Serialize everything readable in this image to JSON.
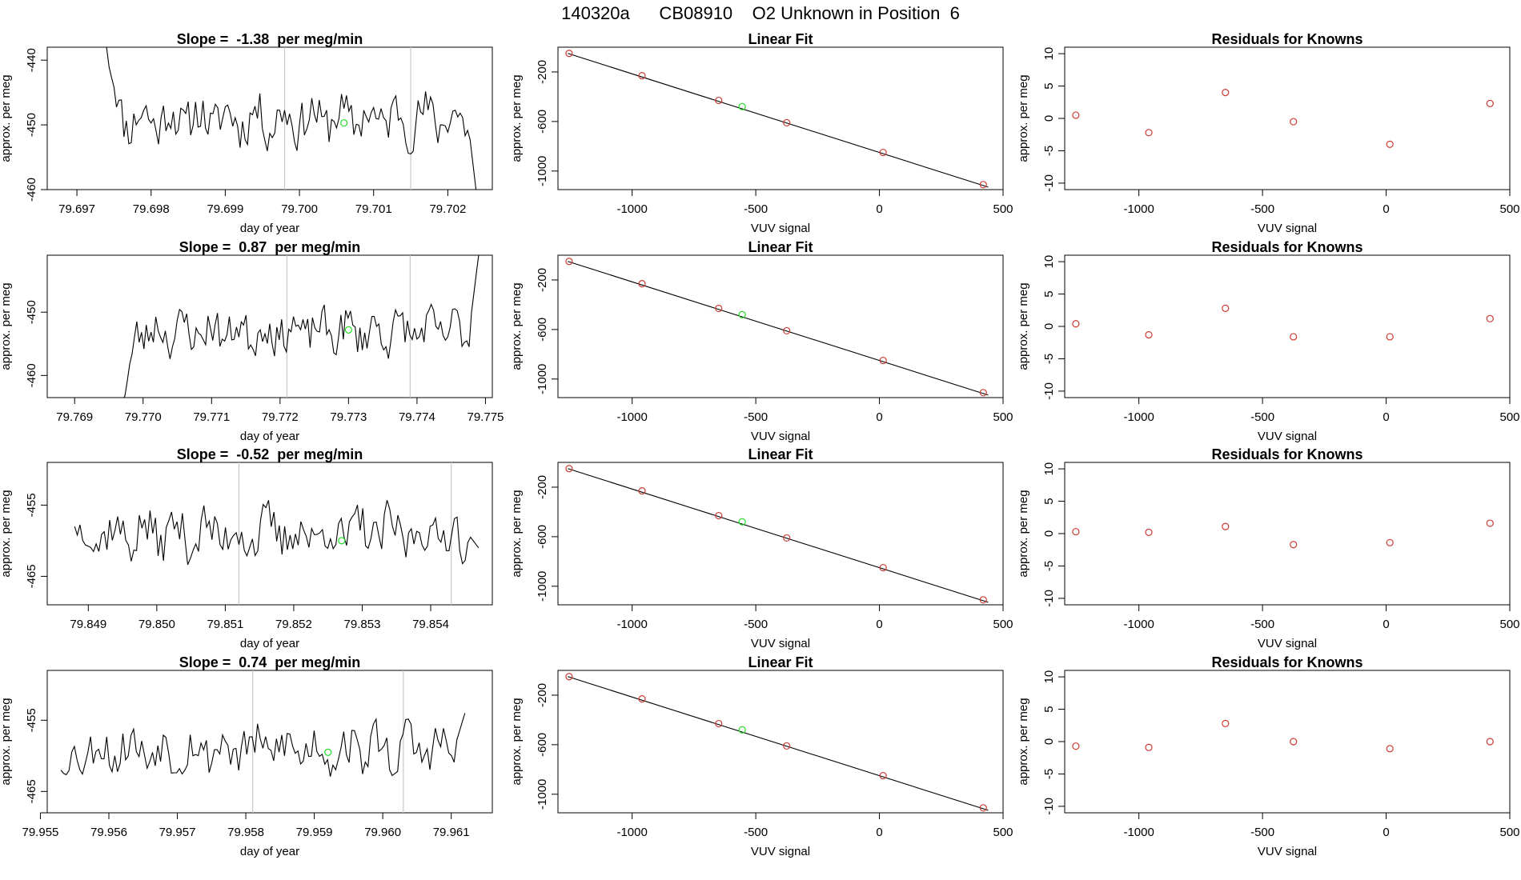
{
  "page_title": "140320a      CB08910    O2 Unknown in Position  6",
  "colors": {
    "line": "#000000",
    "known": "#cd3a33",
    "unknown": "#22dd22",
    "vline": "#c8c8c8",
    "axis": "#000000"
  },
  "chart_data": [
    {
      "type": "line",
      "title": "Slope =  -1.38  per meg/min",
      "xlabel": "day of year",
      "ylabel": "approx. per meg",
      "xlim": [
        79.6966,
        79.7026
      ],
      "ylim": [
        -460,
        -438
      ],
      "xticks": [
        "79.697",
        "79.698",
        "79.699",
        "79.700",
        "79.701",
        "79.702"
      ],
      "xtick_values": [
        79.697,
        79.698,
        79.699,
        79.7,
        79.701,
        79.702
      ],
      "yticks": [
        "-440",
        "-450",
        "-460"
      ],
      "ytick_values": [
        -440,
        -450,
        -460
      ],
      "vlines": [
        79.6998,
        79.7015
      ],
      "unknown_point": {
        "x": 79.7006,
        "y": -449.7
      },
      "trace": {
        "x_start": 79.6974,
        "x_end": 79.7024,
        "seed": 11,
        "mean": -449,
        "amp": 4.5,
        "start_y": -438,
        "end_y": -462
      }
    },
    {
      "type": "scatter",
      "title": "Linear Fit",
      "xlabel": "VUV signal",
      "ylabel": "approx. per meg",
      "xlim": [
        -1300,
        500
      ],
      "ylim": [
        -1150,
        0
      ],
      "xticks": [
        "-1000",
        "-500",
        "0",
        "500"
      ],
      "xtick_values": [
        -1000,
        -500,
        0,
        500
      ],
      "yticks": [
        "-200",
        "-600",
        "-1000"
      ],
      "ytick_values": [
        -200,
        -600,
        -1000
      ],
      "fit_line": {
        "x": [
          -1260,
          440
        ],
        "y": [
          -50,
          -1130
        ]
      },
      "known_points": [
        {
          "x": -1255,
          "y": -50
        },
        {
          "x": -960,
          "y": -230
        },
        {
          "x": -650,
          "y": -430
        },
        {
          "x": -375,
          "y": -610
        },
        {
          "x": 15,
          "y": -850
        },
        {
          "x": 420,
          "y": -1110
        }
      ],
      "unknown_point": {
        "x": -555,
        "y": -480
      }
    },
    {
      "type": "scatter",
      "title": "Residuals for Knowns",
      "xlabel": "VUV signal",
      "ylabel": "approx. per meg",
      "xlim": [
        -1300,
        500
      ],
      "ylim": [
        -11,
        11
      ],
      "xticks": [
        "-1000",
        "-500",
        "0",
        "500"
      ],
      "xtick_values": [
        -1000,
        -500,
        0,
        500
      ],
      "yticks": [
        "10",
        "5",
        "0",
        "-5",
        "-10"
      ],
      "ytick_values": [
        10,
        5,
        0,
        -5,
        -10
      ],
      "known_points": [
        {
          "x": -1255,
          "y": 0.5
        },
        {
          "x": -960,
          "y": -2.2
        },
        {
          "x": -650,
          "y": 4.0
        },
        {
          "x": -375,
          "y": -0.5
        },
        {
          "x": 15,
          "y": -4.0
        },
        {
          "x": 420,
          "y": 2.3
        }
      ]
    },
    {
      "type": "line",
      "title": "Slope =  0.87  per meg/min",
      "xlabel": "day of year",
      "ylabel": "approx. per meg",
      "xlim": [
        79.7686,
        79.7751
      ],
      "ylim": [
        -463.5,
        -441
      ],
      "xticks": [
        "79.769",
        "79.770",
        "79.771",
        "79.772",
        "79.773",
        "79.774",
        "79.775"
      ],
      "xtick_values": [
        79.769,
        79.77,
        79.771,
        79.772,
        79.773,
        79.774,
        79.775
      ],
      "yticks": [
        "-450",
        "-460"
      ],
      "ytick_values": [
        -450,
        -460
      ],
      "vlines": [
        79.7721,
        79.7739
      ],
      "unknown_point": {
        "x": 79.773,
        "y": -452.8
      },
      "trace": {
        "x_start": 79.7697,
        "x_end": 79.7749,
        "seed": 23,
        "mean": -453,
        "amp": 4.0,
        "start_y": -464,
        "end_y": -441
      }
    },
    {
      "type": "scatter",
      "title": "Linear Fit",
      "xlabel": "VUV signal",
      "ylabel": "approx. per meg",
      "xlim": [
        -1300,
        500
      ],
      "ylim": [
        -1150,
        0
      ],
      "xticks": [
        "-1000",
        "-500",
        "0",
        "500"
      ],
      "xtick_values": [
        -1000,
        -500,
        0,
        500
      ],
      "yticks": [
        "-200",
        "-600",
        "-1000"
      ],
      "ytick_values": [
        -200,
        -600,
        -1000
      ],
      "fit_line": {
        "x": [
          -1260,
          440
        ],
        "y": [
          -50,
          -1130
        ]
      },
      "known_points": [
        {
          "x": -1255,
          "y": -50
        },
        {
          "x": -960,
          "y": -230
        },
        {
          "x": -650,
          "y": -430
        },
        {
          "x": -375,
          "y": -610
        },
        {
          "x": 15,
          "y": -850
        },
        {
          "x": 420,
          "y": -1110
        }
      ],
      "unknown_point": {
        "x": -555,
        "y": -480
      }
    },
    {
      "type": "scatter",
      "title": "Residuals for Knowns",
      "xlabel": "VUV signal",
      "ylabel": "approx. per meg",
      "xlim": [
        -1300,
        500
      ],
      "ylim": [
        -11,
        11
      ],
      "xticks": [
        "-1000",
        "-500",
        "0",
        "500"
      ],
      "xtick_values": [
        -1000,
        -500,
        0,
        500
      ],
      "yticks": [
        "10",
        "5",
        "0",
        "-5",
        "-10"
      ],
      "ytick_values": [
        10,
        5,
        0,
        -5,
        -10
      ],
      "known_points": [
        {
          "x": -1255,
          "y": 0.4
        },
        {
          "x": -960,
          "y": -1.3
        },
        {
          "x": -650,
          "y": 2.8
        },
        {
          "x": -375,
          "y": -1.6
        },
        {
          "x": 15,
          "y": -1.6
        },
        {
          "x": 420,
          "y": 1.2
        }
      ]
    },
    {
      "type": "line",
      "title": "Slope =  -0.52  per meg/min",
      "xlabel": "day of year",
      "ylabel": "approx. per meg",
      "xlim": [
        79.8484,
        79.8549
      ],
      "ylim": [
        -469,
        -449
      ],
      "xticks": [
        "79.849",
        "79.850",
        "79.851",
        "79.852",
        "79.853",
        "79.854"
      ],
      "xtick_values": [
        79.849,
        79.85,
        79.851,
        79.852,
        79.853,
        79.854
      ],
      "yticks": [
        "-455",
        "-465"
      ],
      "ytick_values": [
        -455,
        -465
      ],
      "vlines": [
        79.8512,
        79.8543
      ],
      "unknown_point": {
        "x": 79.8527,
        "y": -460.0
      },
      "trace": {
        "x_start": 79.8488,
        "x_end": 79.8547,
        "seed": 37,
        "mean": -459,
        "amp": 4.2,
        "start_y": -458,
        "end_y": -461
      }
    },
    {
      "type": "scatter",
      "title": "Linear Fit",
      "xlabel": "VUV signal",
      "ylabel": "approx. per meg",
      "xlim": [
        -1300,
        500
      ],
      "ylim": [
        -1150,
        0
      ],
      "xticks": [
        "-1000",
        "-500",
        "0",
        "500"
      ],
      "xtick_values": [
        -1000,
        -500,
        0,
        500
      ],
      "yticks": [
        "-200",
        "-600",
        "-1000"
      ],
      "ytick_values": [
        -200,
        -600,
        -1000
      ],
      "fit_line": {
        "x": [
          -1260,
          440
        ],
        "y": [
          -50,
          -1130
        ]
      },
      "known_points": [
        {
          "x": -1255,
          "y": -50
        },
        {
          "x": -960,
          "y": -230
        },
        {
          "x": -650,
          "y": -430
        },
        {
          "x": -375,
          "y": -610
        },
        {
          "x": 15,
          "y": -850
        },
        {
          "x": 420,
          "y": -1110
        }
      ],
      "unknown_point": {
        "x": -555,
        "y": -480
      }
    },
    {
      "type": "scatter",
      "title": "Residuals for Knowns",
      "xlabel": "VUV signal",
      "ylabel": "approx. per meg",
      "xlim": [
        -1300,
        500
      ],
      "ylim": [
        -11,
        11
      ],
      "xticks": [
        "-1000",
        "-500",
        "0",
        "500"
      ],
      "xtick_values": [
        -1000,
        -500,
        0,
        500
      ],
      "yticks": [
        "10",
        "5",
        "0",
        "-5",
        "-10"
      ],
      "ytick_values": [
        10,
        5,
        0,
        -5,
        -10
      ],
      "known_points": [
        {
          "x": -1255,
          "y": 0.3
        },
        {
          "x": -960,
          "y": 0.2
        },
        {
          "x": -650,
          "y": 1.1
        },
        {
          "x": -375,
          "y": -1.7
        },
        {
          "x": 15,
          "y": -1.4
        },
        {
          "x": 420,
          "y": 1.6
        }
      ]
    },
    {
      "type": "line",
      "title": "Slope =  0.74  per meg/min",
      "xlabel": "day of year",
      "ylabel": "approx. per meg",
      "xlim": [
        79.9551,
        79.9616
      ],
      "ylim": [
        -468,
        -448
      ],
      "xticks": [
        "79.955",
        "79.956",
        "79.957",
        "79.958",
        "79.959",
        "79.960",
        "79.961"
      ],
      "xtick_values": [
        79.955,
        79.956,
        79.957,
        79.958,
        79.959,
        79.96,
        79.961
      ],
      "yticks": [
        "-455",
        "-465"
      ],
      "ytick_values": [
        -455,
        -465
      ],
      "vlines": [
        79.9581,
        79.9603
      ],
      "unknown_point": {
        "x": 79.9592,
        "y": -459.5
      },
      "trace": {
        "x_start": 79.9553,
        "x_end": 79.9612,
        "seed": 53,
        "mean": -459,
        "amp": 4.0,
        "start_y": -462,
        "end_y": -454
      }
    },
    {
      "type": "scatter",
      "title": "Linear Fit",
      "xlabel": "VUV signal",
      "ylabel": "approx. per meg",
      "xlim": [
        -1300,
        500
      ],
      "ylim": [
        -1150,
        0
      ],
      "xticks": [
        "-1000",
        "-500",
        "0",
        "500"
      ],
      "xtick_values": [
        -1000,
        -500,
        0,
        500
      ],
      "yticks": [
        "-200",
        "-600",
        "-1000"
      ],
      "ytick_values": [
        -200,
        -600,
        -1000
      ],
      "fit_line": {
        "x": [
          -1260,
          440
        ],
        "y": [
          -50,
          -1130
        ]
      },
      "known_points": [
        {
          "x": -1255,
          "y": -50
        },
        {
          "x": -960,
          "y": -230
        },
        {
          "x": -650,
          "y": -430
        },
        {
          "x": -375,
          "y": -610
        },
        {
          "x": 15,
          "y": -850
        },
        {
          "x": 420,
          "y": -1110
        }
      ],
      "unknown_point": {
        "x": -555,
        "y": -480
      }
    },
    {
      "type": "scatter",
      "title": "Residuals for Knowns",
      "xlabel": "VUV signal",
      "ylabel": "approx. per meg",
      "xlim": [
        -1300,
        500
      ],
      "ylim": [
        -11,
        11
      ],
      "xticks": [
        "-1000",
        "-500",
        "0",
        "500"
      ],
      "xtick_values": [
        -1000,
        -500,
        0,
        500
      ],
      "yticks": [
        "10",
        "5",
        "0",
        "-5",
        "-10"
      ],
      "ytick_values": [
        10,
        5,
        0,
        -5,
        -10
      ],
      "known_points": [
        {
          "x": -1255,
          "y": -0.7
        },
        {
          "x": -960,
          "y": -0.9
        },
        {
          "x": -650,
          "y": 2.8
        },
        {
          "x": -375,
          "y": 0.0
        },
        {
          "x": 15,
          "y": -1.1
        },
        {
          "x": 420,
          "y": 0.0
        }
      ]
    }
  ]
}
